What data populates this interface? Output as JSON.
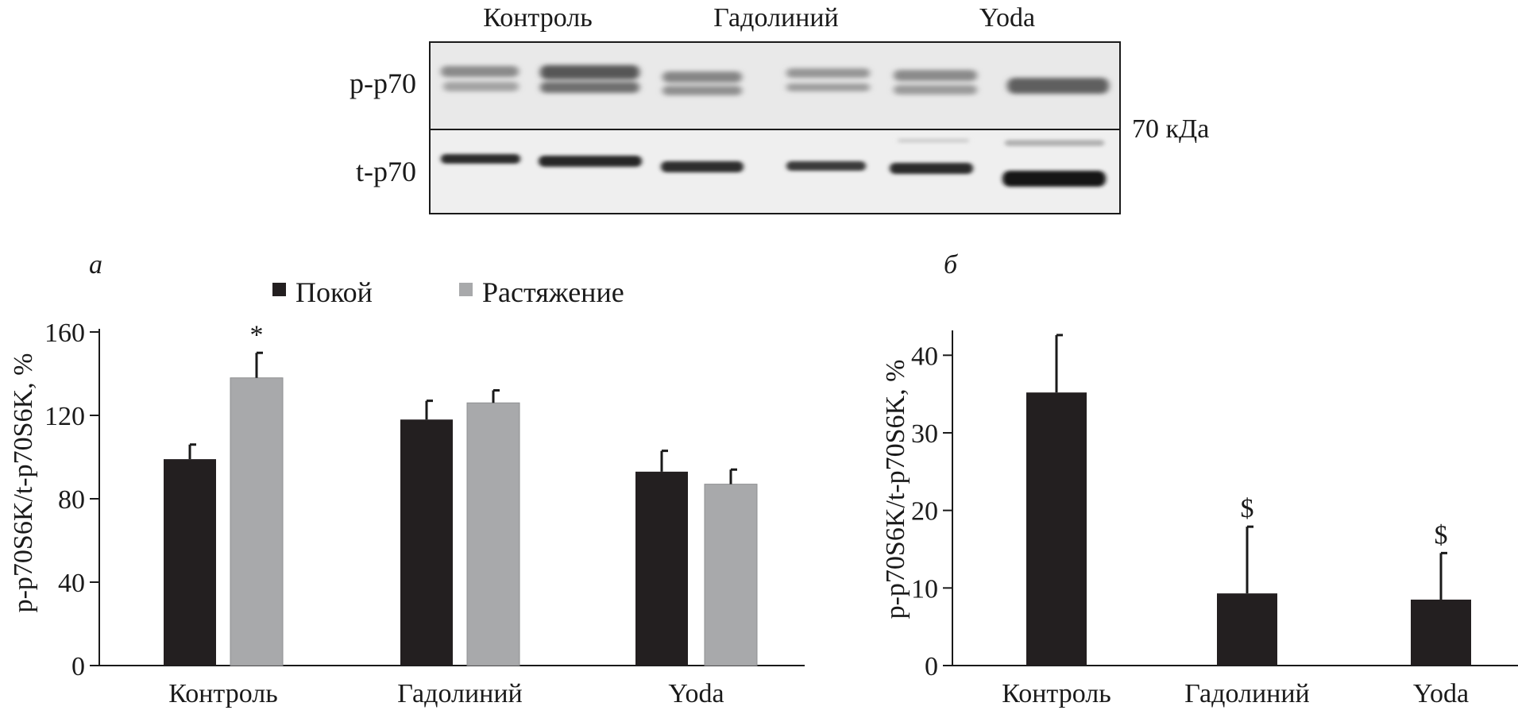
{
  "blot": {
    "lanes": [
      "Контроль",
      "Гадолиний",
      "Yoda"
    ],
    "rows": [
      "p-p70",
      "t-p70"
    ],
    "marker": "70 кДа"
  },
  "colors": {
    "rest": "#231f20",
    "stretch": "#a8a9ab",
    "axis": "#1a1a1a"
  },
  "chart_data": [
    {
      "type": "bar",
      "panel_label": "а",
      "categories": [
        "Контроль",
        "Гадолиний",
        "Yoda"
      ],
      "series": [
        {
          "name": "Покой",
          "values": [
            99,
            118,
            93
          ],
          "errors": [
            7,
            9,
            10
          ]
        },
        {
          "name": "Растяжение",
          "values": [
            138,
            126,
            87
          ],
          "errors": [
            12,
            6,
            7
          ]
        }
      ],
      "annotations": [
        {
          "category": 0,
          "series": 1,
          "text": "*"
        }
      ],
      "ylabel": "p-p70S6K/t-p70S6K, %",
      "ylim": [
        0,
        160
      ],
      "yticks": [
        0,
        40,
        80,
        120,
        160
      ],
      "legend": "top",
      "grid": false
    },
    {
      "type": "bar",
      "panel_label": "б",
      "categories": [
        "Контроль",
        "Гадолиний",
        "Yoda"
      ],
      "series": [
        {
          "values": [
            35.2,
            9.3,
            8.5
          ],
          "errors": [
            7.4,
            8.6,
            6.0
          ]
        }
      ],
      "annotations": [
        {
          "category": 1,
          "series": 0,
          "text": "$"
        },
        {
          "category": 2,
          "series": 0,
          "text": "$"
        }
      ],
      "ylabel": "p-p70S6K/t-p70S6K, %",
      "ylim": [
        0,
        43
      ],
      "yticks": [
        0,
        10,
        20,
        30,
        40
      ],
      "legend": "none",
      "grid": false
    }
  ]
}
